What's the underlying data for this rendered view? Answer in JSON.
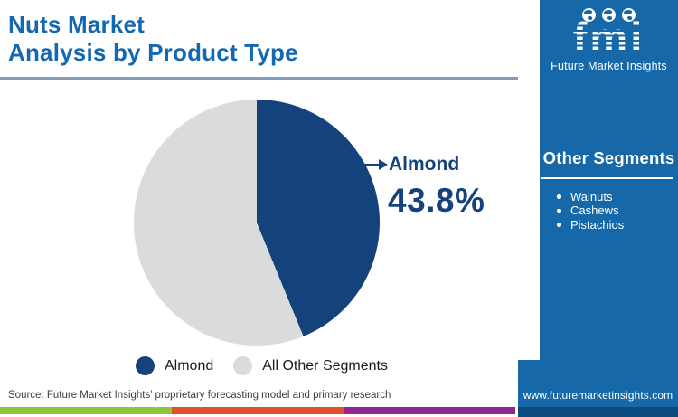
{
  "title": {
    "line1": "Nuts Market",
    "line2": "Analysis by Product Type"
  },
  "chart_data": {
    "type": "pie",
    "title": "Nuts Market Analysis by Product Type",
    "slices": [
      {
        "label": "Almond",
        "value": 43.8,
        "color": "#13427D"
      },
      {
        "label": "All Other Segments",
        "value": 56.2,
        "color": "#DBDBDB"
      }
    ],
    "start_angle_deg": 0,
    "direction": "clockwise",
    "legend_position": "bottom",
    "callout": {
      "label": "Almond",
      "value": "43.8%"
    }
  },
  "callout": {
    "label": "Almond",
    "value": "43.8%"
  },
  "legend": {
    "items": [
      {
        "label": "Almond"
      },
      {
        "label": "All Other Segments"
      }
    ]
  },
  "sidebar": {
    "logo": {
      "text": "fmi",
      "subtext": "Future Market Insights",
      "globe_icons": [
        "globe-americas",
        "globe-europe",
        "globe-asia"
      ]
    },
    "other_segments": {
      "heading": "Other Segments",
      "items": [
        "Walnuts",
        "Cashews",
        "Pistachios"
      ]
    },
    "website": "www.futuremarketinsights.com"
  },
  "source": "Source: Future Market Insights’ proprietary forecasting model and primary research",
  "colors": {
    "title_blue": "#1368B2",
    "pie_navy": "#13427D",
    "pie_gray": "#DBDBDB",
    "sidebar_blue": "#1668A8",
    "sidebar_footer_dark": "#0B4B7E",
    "divider_steel": "#7F9EBE",
    "strip_green": "#8CC63E",
    "strip_orange": "#E0522A",
    "strip_purple": "#90278E"
  }
}
